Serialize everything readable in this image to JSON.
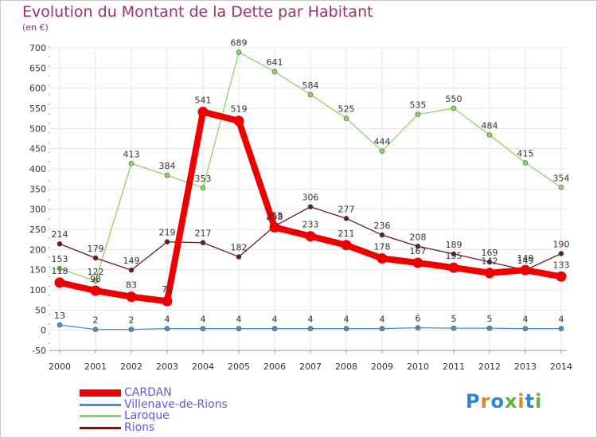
{
  "title": "Evolution du Montant de la Dette par Habitant",
  "unit_label": "(en €)",
  "logo": {
    "text": "Proxiti",
    "colors": [
      "#2b88d8",
      "#e8851e",
      "#2b88d8",
      "#5fb23a",
      "#e8851e",
      "#2b88d8",
      "#5fb23a"
    ]
  },
  "chart_data": {
    "type": "line",
    "title": "Evolution du Montant de la Dette par Habitant",
    "ylabel": "(en €)",
    "xlabel": "",
    "x": [
      "2000",
      "2001",
      "2002",
      "2003",
      "2004",
      "2005",
      "2006",
      "2007",
      "2008",
      "2009",
      "2010",
      "2011",
      "2012",
      "2013",
      "2014"
    ],
    "yticks": [
      -50,
      0,
      50,
      100,
      150,
      200,
      250,
      300,
      350,
      400,
      450,
      500,
      550,
      600,
      650,
      700
    ],
    "ylim": [
      -50,
      700
    ],
    "grid": true,
    "legend_position": "bottom-left",
    "series": [
      {
        "name": "CARDAN",
        "color": "#ee0000",
        "values": [
          118,
          98,
          83,
          72,
          541,
          519,
          255,
          233,
          211,
          178,
          167,
          155,
          142,
          149,
          133
        ]
      },
      {
        "name": "Villenave-de-Rions",
        "color": "#4a8fc8",
        "values": [
          13,
          2,
          2,
          4,
          4,
          4,
          4,
          4,
          4,
          4,
          6,
          5,
          5,
          4,
          4
        ]
      },
      {
        "name": "Laroque",
        "color": "#88d860",
        "values": [
          153,
          122,
          413,
          384,
          353,
          689,
          641,
          584,
          525,
          444,
          535,
          550,
          484,
          415,
          354
        ]
      },
      {
        "name": "Rions",
        "color": "#6b1a1a",
        "values": [
          214,
          179,
          149,
          219,
          217,
          182,
          258,
          306,
          277,
          236,
          208,
          189,
          169,
          149,
          190
        ]
      }
    ]
  }
}
